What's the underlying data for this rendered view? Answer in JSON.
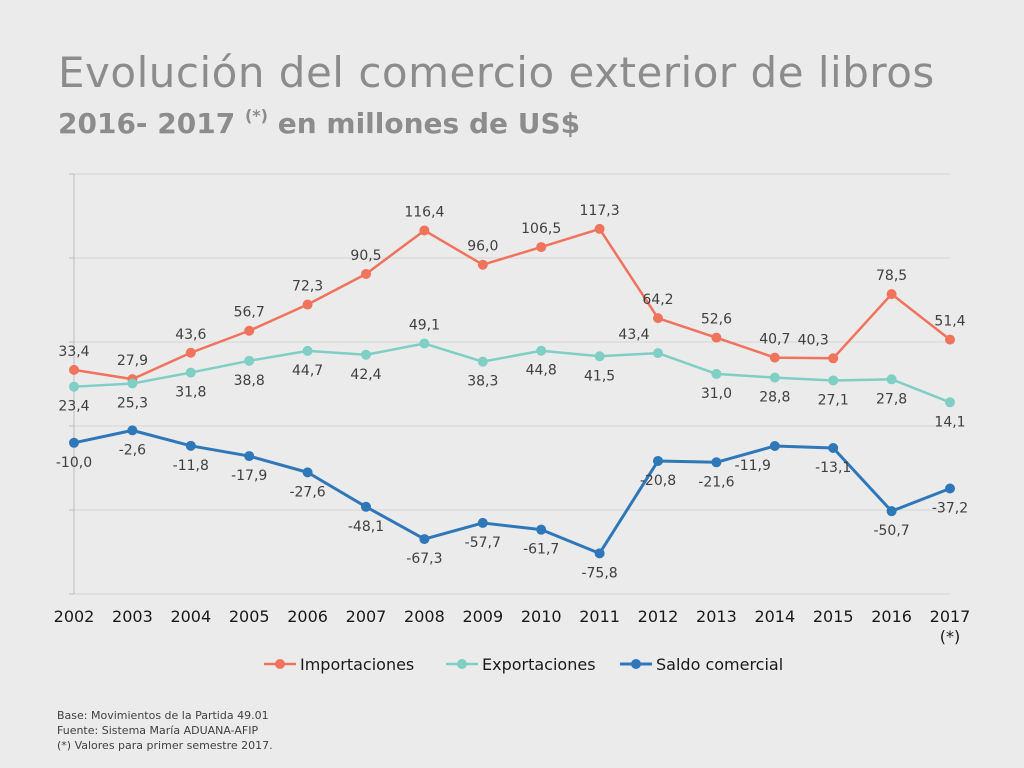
{
  "header": {
    "title": "Evolución del comercio exterior de libros",
    "subtitle_years": "2016- 2017",
    "subtitle_mark": "(*)",
    "subtitle_rest": "en millones de US$"
  },
  "footnotes": [
    "Base: Movimientos de la Partida 49.01",
    "Fuente: Sistema María ADUANA-AFIP",
    "(*)  Valores para primer semestre 2017."
  ],
  "colors": {
    "importaciones": "#f0735c",
    "exportaciones": "#7fcfc4",
    "saldo": "#2e77b8",
    "axis": "#bdbdbd",
    "grid": "#d4d4d4"
  },
  "chart_data": {
    "type": "line",
    "categories": [
      "2002",
      "2003",
      "2004",
      "2005",
      "2006",
      "2007",
      "2008",
      "2009",
      "2010",
      "2011",
      "2012",
      "2013",
      "2014",
      "2015",
      "2016",
      "2017"
    ],
    "category_sublabel": {
      "2017": "(*)"
    },
    "series": [
      {
        "name": "Importaciones",
        "values": [
          33.4,
          27.9,
          43.6,
          56.7,
          72.3,
          90.5,
          116.4,
          96.0,
          106.5,
          117.3,
          64.2,
          52.6,
          40.7,
          40.3,
          78.5,
          51.4
        ],
        "labels": [
          "33,4",
          "27,9",
          "43,6",
          "56,7",
          "72,3",
          "90,5",
          "116,4",
          "96,0",
          "106,5",
          "117,3",
          "64,2",
          "52,6",
          "40,7",
          "40,3",
          "78,5",
          "51,4"
        ]
      },
      {
        "name": "Exportaciones",
        "values": [
          23.4,
          25.3,
          31.8,
          38.8,
          44.7,
          42.4,
          49.1,
          38.3,
          44.8,
          41.5,
          43.4,
          31.0,
          28.8,
          27.1,
          27.8,
          14.1
        ],
        "labels": [
          "23,4",
          "25,3",
          "31,8",
          "38,8",
          "44,7",
          "42,4",
          "49,1",
          "38,3",
          "44,8",
          "41,5",
          "43,4",
          "31,0",
          "28,8",
          "27,1",
          "27,8",
          "14,1"
        ]
      },
      {
        "name": "Saldo comercial",
        "values": [
          -10.0,
          -2.6,
          -11.8,
          -17.9,
          -27.6,
          -48.1,
          -67.3,
          -57.7,
          -61.7,
          -75.8,
          -20.8,
          -21.6,
          -11.9,
          -13.1,
          -50.7,
          -37.2
        ],
        "labels": [
          "-10,0",
          "-2,6",
          "-11,8",
          "-17,9",
          "-27,6",
          "-48,1",
          "-67,3",
          "-57,7",
          "-61,7",
          "-75,8",
          "-20,8",
          "-21,6",
          "-11,9",
          "-13,1",
          "-50,7",
          "-37,2"
        ]
      }
    ],
    "ylim": [
      -100,
      150
    ],
    "grid": true,
    "legend_position": "bottom"
  }
}
